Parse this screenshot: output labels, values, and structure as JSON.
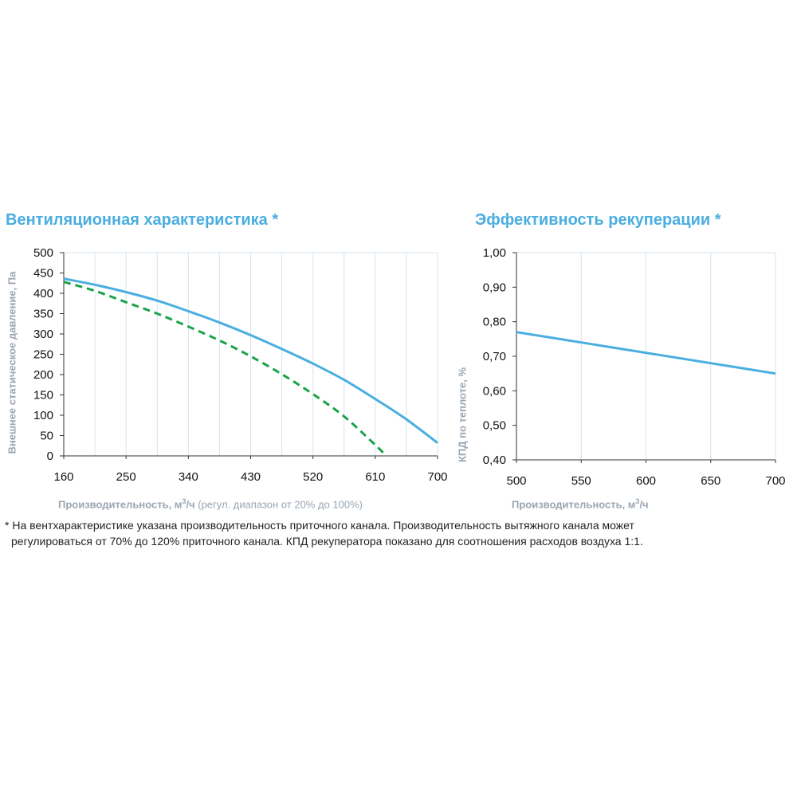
{
  "chart_data": [
    {
      "type": "line",
      "title": "Вентиляционная характеристика *",
      "xlabel": "Производительность, м³/ч",
      "xlabel_note": "(регул. диапазон от 20% до 100%)",
      "ylabel": "Внешнее статическое давление, Па",
      "xlim": [
        160,
        700
      ],
      "ylim": [
        0,
        500
      ],
      "xticks": [
        160,
        250,
        340,
        430,
        520,
        610,
        700
      ],
      "xtick_labels": [
        "160",
        "250",
        "340",
        "430",
        "520",
        "610",
        "700"
      ],
      "yticks": [
        0,
        50,
        100,
        150,
        200,
        250,
        300,
        350,
        400,
        450,
        500
      ],
      "ytick_labels": [
        "0",
        "50",
        "100",
        "150",
        "200",
        "250",
        "300",
        "350",
        "400",
        "450",
        "500"
      ],
      "grid": true,
      "series": [
        {
          "style": "solid",
          "color": "#4aaee0",
          "x": [
            160,
            205,
            250,
            295,
            340,
            385,
            430,
            475,
            520,
            565,
            610,
            655,
            700
          ],
          "y": [
            436,
            421,
            403,
            382,
            356,
            328,
            297,
            263,
            227,
            187,
            140,
            90,
            32
          ]
        },
        {
          "style": "dashed",
          "color": "#1aa348",
          "x": [
            160,
            205,
            250,
            295,
            340,
            385,
            430,
            475,
            520,
            565,
            610,
            626
          ],
          "y": [
            428,
            406,
            378,
            350,
            318,
            284,
            245,
            201,
            152,
            97,
            27,
            0
          ]
        }
      ]
    },
    {
      "type": "line",
      "title": "Эффективность рекуперации *",
      "xlabel": "Производительность, м³/ч",
      "ylabel": "КПД по теплоте, %",
      "xlim": [
        500,
        700
      ],
      "ylim": [
        0.4,
        1.0
      ],
      "xticks": [
        500,
        550,
        600,
        650,
        700
      ],
      "xtick_labels": [
        "500",
        "550",
        "600",
        "650",
        "700"
      ],
      "yticks": [
        0.4,
        0.5,
        0.6,
        0.7,
        0.8,
        0.9,
        1.0
      ],
      "ytick_labels": [
        "0,40",
        "0,50",
        "0,60",
        "0,70",
        "0,80",
        "0,90",
        "1,00"
      ],
      "grid": true,
      "series": [
        {
          "style": "solid",
          "color": "#4aaee0",
          "x": [
            500,
            550,
            600,
            650,
            700
          ],
          "y": [
            0.77,
            0.74,
            0.71,
            0.68,
            0.65
          ]
        }
      ]
    }
  ],
  "labels": {
    "left_xlabel_main": "Производительность, м",
    "left_xlabel_sup": "3",
    "left_xlabel_unit": "/ч",
    "right_xlabel_main": "Производительность, м",
    "right_xlabel_sup": "3",
    "right_xlabel_unit": "/ч"
  },
  "footnote": {
    "line1": "* На вентхарактеристике указана производительность приточного канала. Производительность вытяжного канала может",
    "line2": "регулироваться от 70% до 120% приточного канала. КПД рекуператора показано для соотношения расходов воздуха 1:1."
  }
}
